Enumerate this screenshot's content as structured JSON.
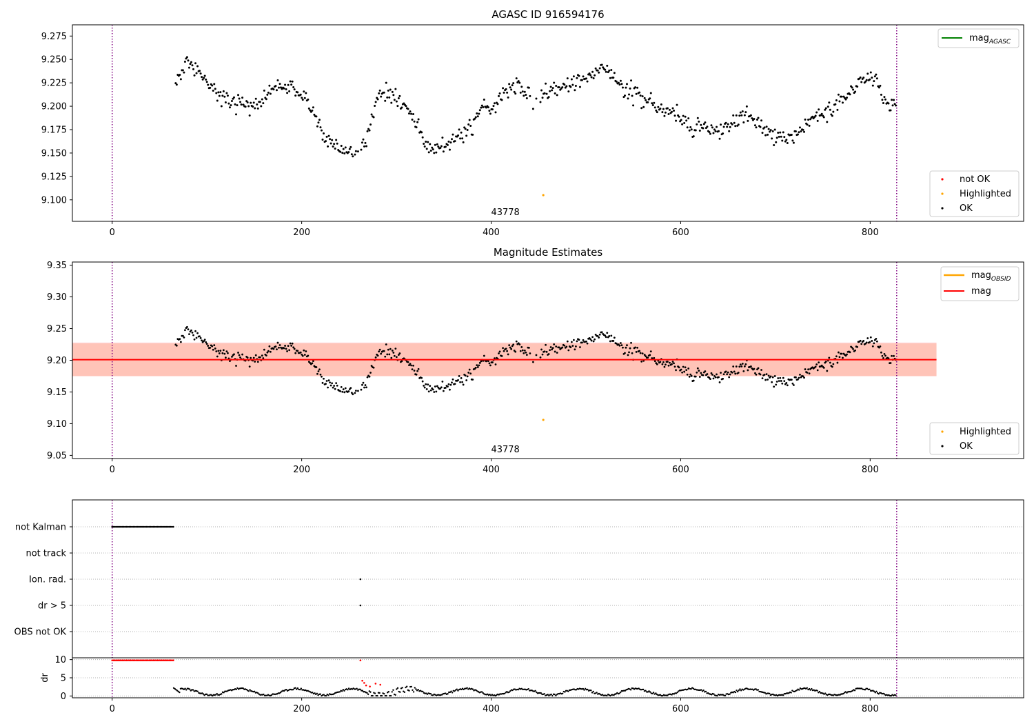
{
  "chart_data": [
    {
      "type": "scatter",
      "title": "AGASC ID 916594176",
      "xlim": [
        -42,
        962
      ],
      "ylim": [
        9.077,
        9.287
      ],
      "x_ticks": [
        0,
        200,
        400,
        600,
        800
      ],
      "y_ticks": [
        9.1,
        9.125,
        9.15,
        9.175,
        9.2,
        9.225,
        9.25,
        9.275
      ],
      "y_tick_labels": [
        "9.100",
        "9.125",
        "9.150",
        "9.175",
        "9.200",
        "9.225",
        "9.250",
        "9.275"
      ],
      "obsid_label": "43778",
      "obsid_label_x": 415,
      "vlines": [
        0,
        828
      ],
      "legend_upper": {
        "placement": "top-right",
        "entries": [
          {
            "label": "mag",
            "subscript": "AGASC",
            "color": "#008000",
            "kind": "line"
          }
        ]
      },
      "legend_lower": {
        "placement": "bottom-right",
        "entries": [
          {
            "label": "not OK",
            "color": "#ff0000",
            "kind": "dot"
          },
          {
            "label": "Highlighted",
            "color": "#ffa500",
            "kind": "dot"
          },
          {
            "label": "OK",
            "color": "#000000",
            "kind": "dot"
          }
        ]
      },
      "highlighted": [
        {
          "x": 455,
          "y": 9.105
        }
      ],
      "trend": {
        "x": [
          67,
          80,
          95,
          110,
          125,
          140,
          155,
          165,
          175,
          190,
          205,
          215,
          225,
          235,
          250,
          260,
          270,
          280,
          290,
          300,
          310,
          320,
          330,
          345,
          360,
          375,
          390,
          400,
          410,
          420,
          435,
          445,
          460,
          475,
          490,
          505,
          520,
          535,
          550,
          565,
          580,
          595,
          610,
          625,
          640,
          655,
          670,
          685,
          700,
          715,
          725,
          740,
          760,
          775,
          790,
          805,
          820,
          828
        ],
        "y": [
          9.225,
          9.248,
          9.232,
          9.215,
          9.205,
          9.203,
          9.202,
          9.215,
          9.218,
          9.222,
          9.205,
          9.188,
          9.163,
          9.16,
          9.152,
          9.148,
          9.17,
          9.208,
          9.218,
          9.208,
          9.2,
          9.185,
          9.158,
          9.155,
          9.162,
          9.175,
          9.198,
          9.195,
          9.21,
          9.222,
          9.22,
          9.203,
          9.215,
          9.218,
          9.225,
          9.235,
          9.24,
          9.222,
          9.215,
          9.205,
          9.198,
          9.195,
          9.175,
          9.178,
          9.172,
          9.18,
          9.192,
          9.178,
          9.168,
          9.165,
          9.172,
          9.19,
          9.195,
          9.21,
          9.228,
          9.232,
          9.198,
          9.202
        ]
      },
      "ok_series": {
        "x_start": 67,
        "x_end": 828,
        "step": 1.1,
        "scatter": 0.009,
        "seed": 11,
        "gaps": [
          [
            255,
            262
          ],
          [
            440,
            452
          ]
        ]
      }
    },
    {
      "type": "scatter",
      "title": "Magnitude Estimates",
      "xlim": [
        -42,
        962
      ],
      "ylim": [
        9.045,
        9.355
      ],
      "x_ticks": [
        0,
        200,
        400,
        600,
        800
      ],
      "y_ticks": [
        9.05,
        9.1,
        9.15,
        9.2,
        9.25,
        9.3,
        9.35
      ],
      "y_tick_labels": [
        "9.05",
        "9.10",
        "9.15",
        "9.20",
        "9.25",
        "9.30",
        "9.35"
      ],
      "obsid_label": "43778",
      "obsid_label_x": 415,
      "vlines": [
        0,
        828
      ],
      "mag_line": {
        "y": 9.201,
        "x_range": [
          -42,
          870
        ],
        "color": "#ff0000"
      },
      "mag_obsid_band": {
        "y_range": [
          9.175,
          9.227
        ],
        "x_range": [
          -42,
          870
        ],
        "fill": "#ffa07a"
      },
      "mag_band": {
        "y_range": [
          9.175,
          9.228
        ],
        "x_range": [
          -42,
          870
        ],
        "fill": "#ffc0cb"
      },
      "legend_upper": {
        "placement": "top-right",
        "entries": [
          {
            "label": "mag",
            "subscript": "OBSID",
            "color": "#ffa500",
            "kind": "line"
          },
          {
            "label": "mag",
            "subscript": "",
            "color": "#ff0000",
            "kind": "line"
          }
        ]
      },
      "legend_lower": {
        "placement": "bottom-right",
        "entries": [
          {
            "label": "Highlighted",
            "color": "#ffa500",
            "kind": "dot"
          },
          {
            "label": "OK",
            "color": "#000000",
            "kind": "dot"
          }
        ]
      },
      "highlighted": [
        {
          "x": 455,
          "y": 9.106
        }
      ]
    },
    {
      "type": "scatter",
      "title": "",
      "xlim": [
        -42,
        962
      ],
      "x_ticks": [
        0,
        200,
        400,
        600,
        800
      ],
      "vlines": [
        0,
        828
      ],
      "flag_rows": [
        "not Kalman",
        "not track",
        "Ion. rad.",
        "dr > 5",
        "OBS not OK"
      ],
      "flags": [
        {
          "row": "not Kalman",
          "x_range": [
            0,
            65
          ],
          "step": 1.5
        },
        {
          "row": "Ion. rad.",
          "x_values": [
            262
          ]
        },
        {
          "row": "dr > 5",
          "x_values": [
            262
          ]
        }
      ],
      "dr_panel": {
        "ylabel": "dr",
        "ylim": [
          -0.5,
          10.5
        ],
        "y_ticks": [
          0,
          5,
          10
        ],
        "red_points": {
          "x_range": [
            0,
            65
          ],
          "y": 9.8,
          "step": 1.5,
          "extra": [
            {
              "x": 262,
              "y": 9.8
            },
            {
              "x": 264,
              "y": 4.2
            },
            {
              "x": 266,
              "y": 3.6
            },
            {
              "x": 268,
              "y": 2.9
            },
            {
              "x": 272,
              "y": 2.6
            },
            {
              "x": 278,
              "y": 3.4
            },
            {
              "x": 283,
              "y": 3.1
            }
          ]
        },
        "black_points": {
          "x_start": 65,
          "x_end": 828,
          "step": 1.2,
          "seed": 23
        }
      }
    }
  ]
}
